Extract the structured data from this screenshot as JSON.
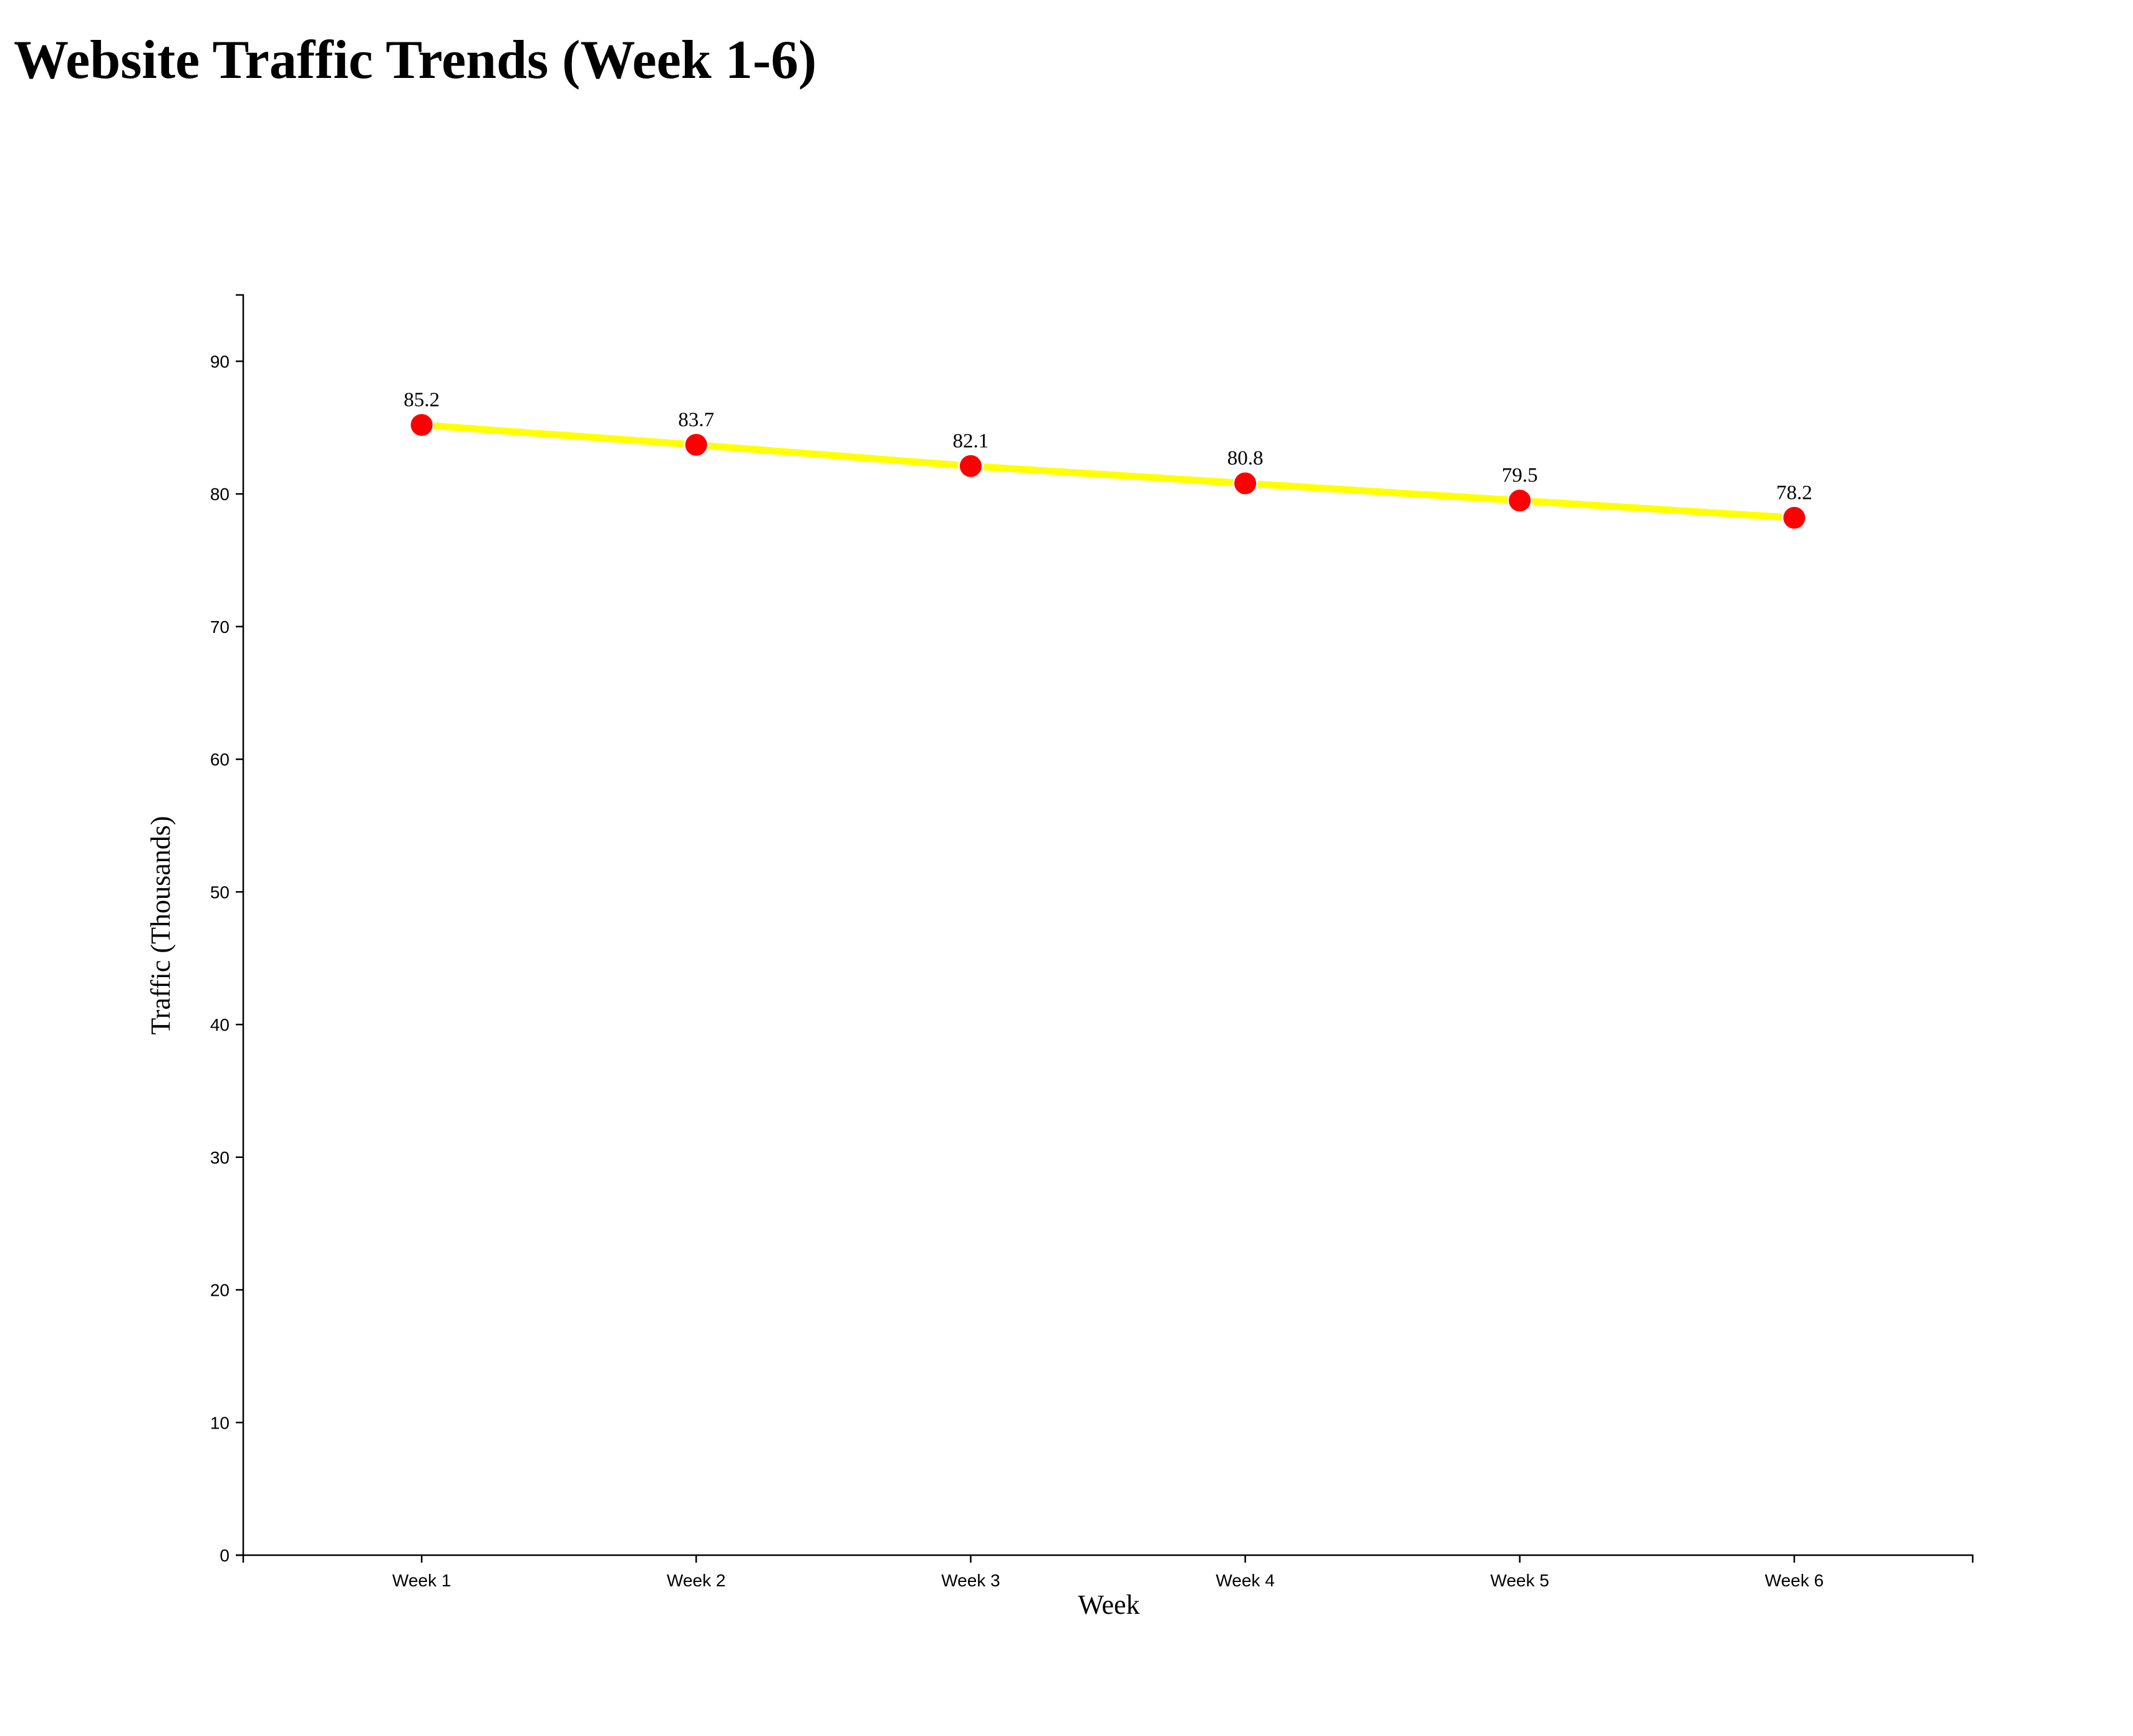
{
  "chart_data": {
    "type": "line",
    "title": "Website Traffic Trends (Week 1-6)",
    "x_label": "Week",
    "y_label": "Traffic (Thousands)",
    "categories": [
      "Week 1",
      "Week 2",
      "Week 3",
      "Week 4",
      "Week 5",
      "Week 6"
    ],
    "values": [
      85.2,
      83.7,
      82.1,
      80.8,
      79.5,
      78.2
    ],
    "line_color": "#ffff00",
    "marker_color": "#ff0000",
    "ylim": [
      0,
      95
    ],
    "yticks": [
      0,
      10,
      20,
      30,
      40,
      50,
      60,
      70,
      80,
      90
    ]
  }
}
